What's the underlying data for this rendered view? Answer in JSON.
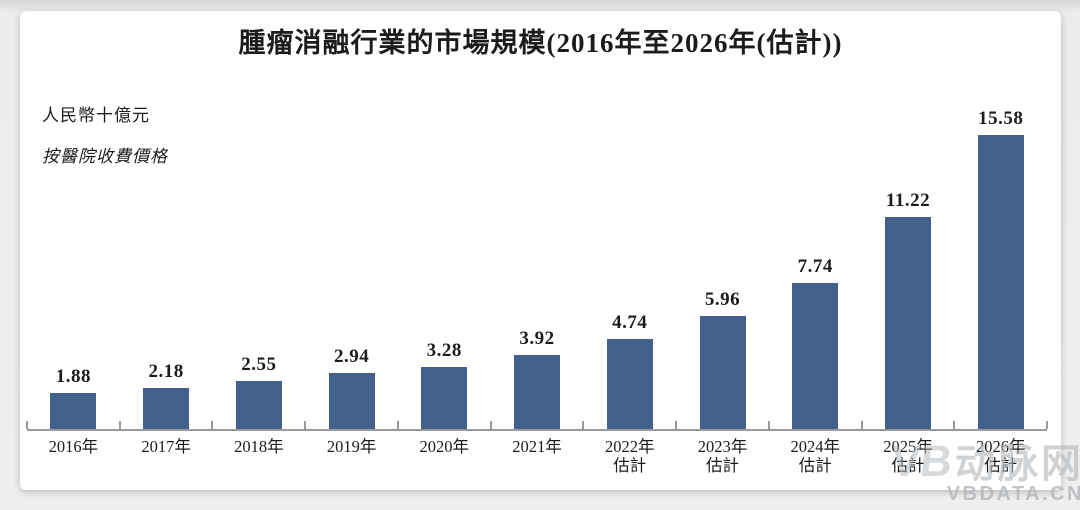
{
  "page": {
    "title": "腫瘤消融行業的市場規模(2016年至2026年(估計))",
    "unit_label": "人民幣十億元",
    "price_basis_label": "按醫院收費價格"
  },
  "watermark": {
    "logo_initials": "VB",
    "logo_name": "动脉网",
    "site_url": "VBDATA.CN"
  },
  "colors": {
    "bar": "#42608A",
    "axis": "#9a9a9a",
    "text": "#1c1c1c",
    "watermark_gray": "#b0b5ba"
  },
  "chart_data": {
    "type": "bar",
    "title": "腫瘤消融行業的市場規模(2016年至2026年(估計))",
    "ylabel": "人民幣十億元",
    "note": "按醫院收費價格",
    "ylim": [
      0,
      16
    ],
    "grid": false,
    "legend": false,
    "data_labels": true,
    "categories": [
      "2016年",
      "2017年",
      "2018年",
      "2019年",
      "2020年",
      "2021年",
      "2022年估計",
      "2023年估計",
      "2024年估計",
      "2025年估計",
      "2026年估計"
    ],
    "values": [
      1.88,
      2.18,
      2.55,
      2.94,
      3.28,
      3.92,
      4.74,
      5.96,
      7.74,
      11.22,
      15.58
    ],
    "bars": [
      {
        "label": "2016年",
        "note": "",
        "value": 1.88
      },
      {
        "label": "2017年",
        "note": "",
        "value": 2.18
      },
      {
        "label": "2018年",
        "note": "",
        "value": 2.55
      },
      {
        "label": "2019年",
        "note": "",
        "value": 2.94
      },
      {
        "label": "2020年",
        "note": "",
        "value": 3.28
      },
      {
        "label": "2021年",
        "note": "",
        "value": 3.92
      },
      {
        "label": "2022年",
        "note": "估計",
        "value": 4.74
      },
      {
        "label": "2023年",
        "note": "估計",
        "value": 5.96
      },
      {
        "label": "2024年",
        "note": "估計",
        "value": 7.74
      },
      {
        "label": "2025年",
        "note": "估計",
        "value": 11.22
      },
      {
        "label": "2026年",
        "note": "估計",
        "value": 15.58
      }
    ]
  }
}
